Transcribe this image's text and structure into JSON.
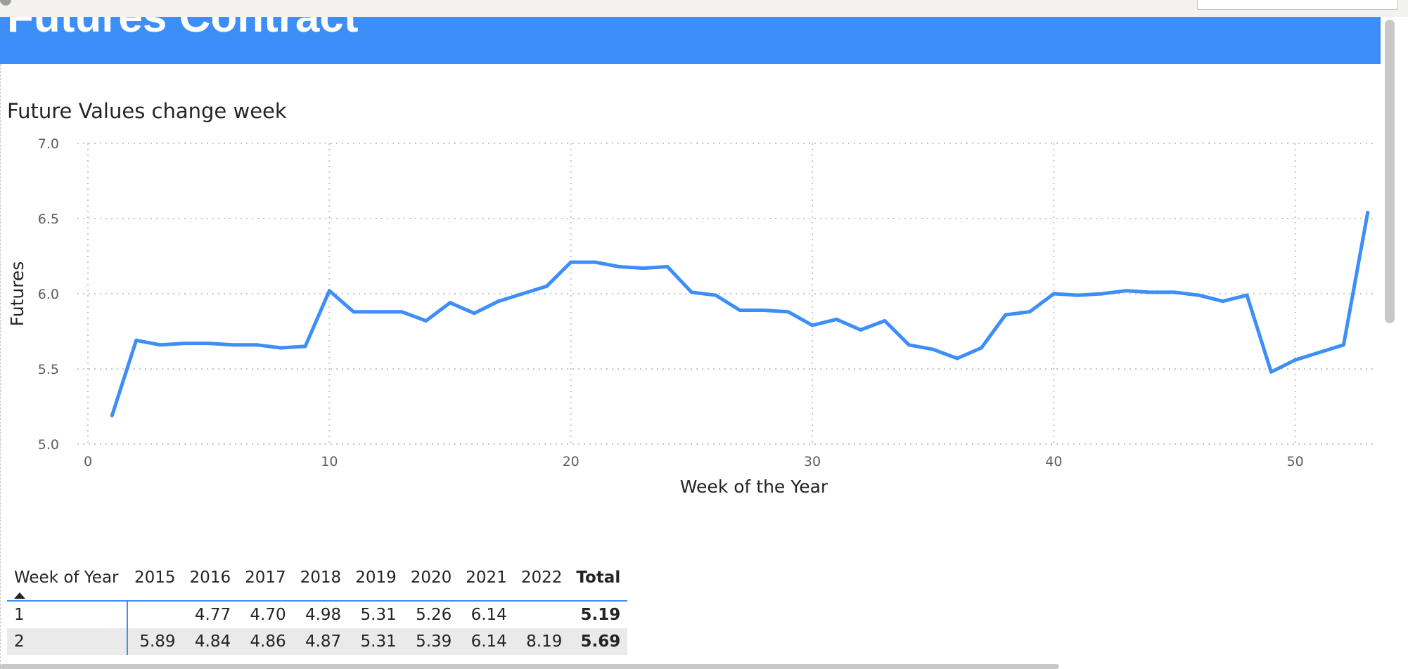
{
  "banner": {
    "title": "Futures Contract"
  },
  "chart_data": {
    "type": "line",
    "title": "Future Values change week",
    "xlabel": "Week of the Year",
    "ylabel": "Futures",
    "xlim": [
      0,
      53.3
    ],
    "ylim": [
      5.0,
      7.0
    ],
    "xticks": [
      0,
      10,
      20,
      30,
      40,
      50
    ],
    "yticks": [
      5.0,
      5.5,
      6.0,
      6.5,
      7.0
    ],
    "ytick_labels": [
      "5.0",
      "5.5",
      "6.0",
      "6.5",
      "7.0"
    ],
    "grid": "dotted",
    "color": "#3d8ef8",
    "x": [
      1,
      2,
      3,
      4,
      5,
      6,
      7,
      8,
      9,
      10,
      11,
      12,
      13,
      14,
      15,
      16,
      17,
      18,
      19,
      20,
      21,
      22,
      23,
      24,
      25,
      26,
      27,
      28,
      29,
      30,
      31,
      32,
      33,
      34,
      35,
      36,
      37,
      38,
      39,
      40,
      41,
      42,
      43,
      44,
      45,
      46,
      47,
      48,
      49,
      50,
      51,
      52,
      53
    ],
    "y": [
      5.19,
      5.69,
      5.66,
      5.67,
      5.67,
      5.66,
      5.66,
      5.64,
      5.65,
      6.02,
      5.88,
      5.88,
      5.88,
      5.82,
      5.94,
      5.87,
      5.95,
      6.0,
      6.05,
      6.21,
      6.21,
      6.18,
      6.17,
      6.18,
      6.01,
      5.99,
      5.89,
      5.89,
      5.88,
      5.79,
      5.83,
      5.76,
      5.82,
      5.66,
      5.63,
      5.57,
      5.64,
      5.86,
      5.88,
      6.0,
      5.99,
      6.0,
      6.02,
      6.01,
      6.01,
      5.99,
      5.95,
      5.99,
      5.48,
      5.56,
      5.61,
      5.66,
      6.54
    ]
  },
  "table": {
    "headers": [
      "Week of Year",
      "2015",
      "2016",
      "2017",
      "2018",
      "2019",
      "2020",
      "2021",
      "2022",
      "Total"
    ],
    "rows": [
      [
        "1",
        "",
        "4.77",
        "4.70",
        "4.98",
        "5.31",
        "5.26",
        "6.14",
        "",
        "5.19"
      ],
      [
        "2",
        "5.89",
        "4.84",
        "4.86",
        "4.87",
        "5.31",
        "5.39",
        "6.14",
        "8.19",
        "5.69"
      ]
    ]
  }
}
